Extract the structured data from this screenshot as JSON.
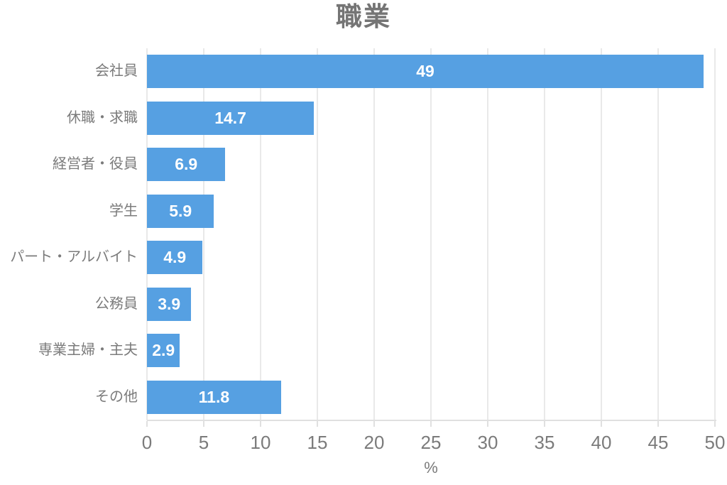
{
  "chart_data": {
    "type": "bar",
    "orientation": "horizontal",
    "title": "職業",
    "categories": [
      "会社員",
      "休職・求職",
      "経営者・役員",
      "学生",
      "パート・アルバイト",
      "公務員",
      "専業主婦・主夫",
      "その他"
    ],
    "values": [
      49,
      14.7,
      6.9,
      5.9,
      4.9,
      3.9,
      2.9,
      11.8
    ],
    "value_labels": [
      "49",
      "14.7",
      "6.9",
      "5.9",
      "4.9",
      "3.9",
      "2.9",
      "11.8"
    ],
    "xlabel": "%",
    "xlim": [
      0,
      50
    ],
    "tick_step": 5,
    "tick_labels": [
      "0",
      "5",
      "10",
      "15",
      "20",
      "25",
      "30",
      "35",
      "40",
      "45",
      "50"
    ],
    "grid": "vertical",
    "legend": "none",
    "value_label_position": "inside-center"
  },
  "colors": {
    "bar_fill": "#56a0e2",
    "value_text": "#ffffff",
    "title_text": "#757575",
    "label_text": "#7b7b7b",
    "gridline": "#e9e9e9",
    "axis_line": "#e0e0e0",
    "background": "#ffffff"
  }
}
